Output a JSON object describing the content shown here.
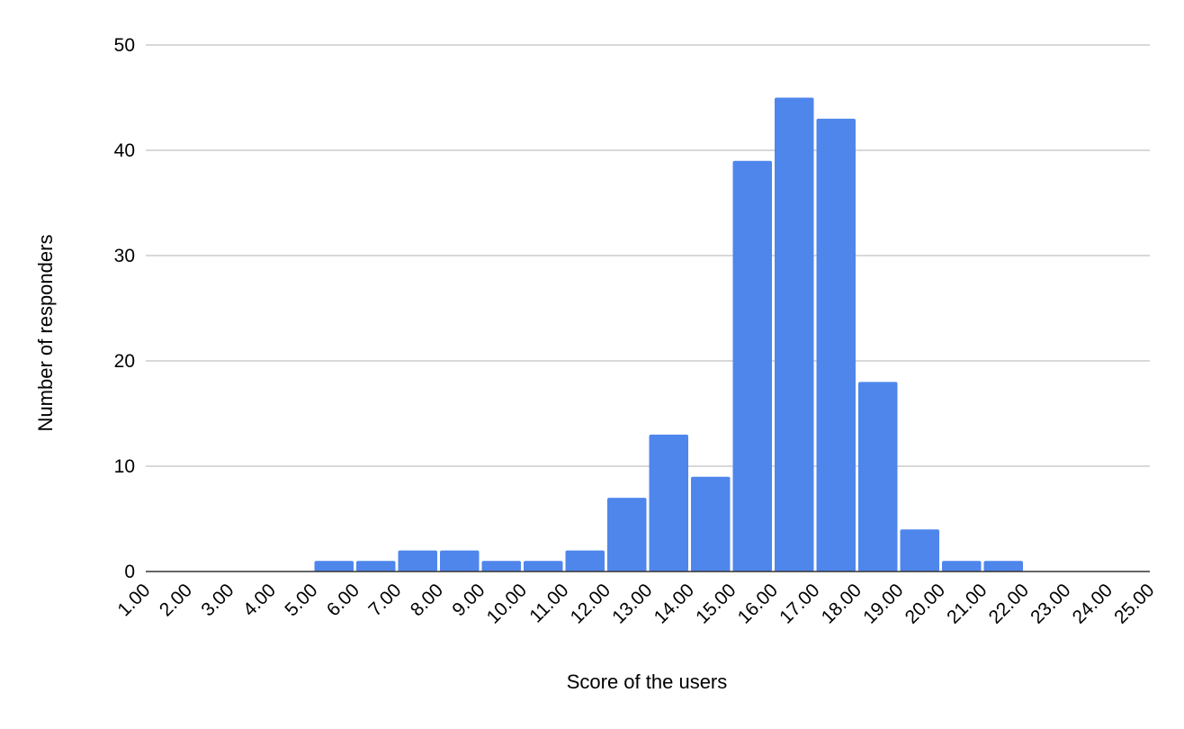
{
  "chart_data": {
    "type": "bar",
    "title": "",
    "xlabel": "Score of the users",
    "ylabel": "Number of responders",
    "ylim": [
      0,
      50
    ],
    "yticks": [
      "0",
      "10",
      "20",
      "30",
      "40",
      "50"
    ],
    "bin_edges": [
      "1.00",
      "2.00",
      "3.00",
      "4.00",
      "5.00",
      "6.00",
      "7.00",
      "8.00",
      "9.00",
      "10.00",
      "11.00",
      "12.00",
      "13.00",
      "14.00",
      "15.00",
      "16.00",
      "17.00",
      "18.00",
      "19.00",
      "20.00",
      "21.00",
      "22.00",
      "23.00",
      "24.00",
      "25.00"
    ],
    "values": [
      0,
      0,
      0,
      0,
      1,
      1,
      2,
      2,
      1,
      1,
      2,
      7,
      13,
      9,
      39,
      45,
      43,
      18,
      4,
      1,
      1,
      0,
      0,
      0
    ],
    "grid": true,
    "legend": "none",
    "bar_color": "#4f86ec"
  }
}
